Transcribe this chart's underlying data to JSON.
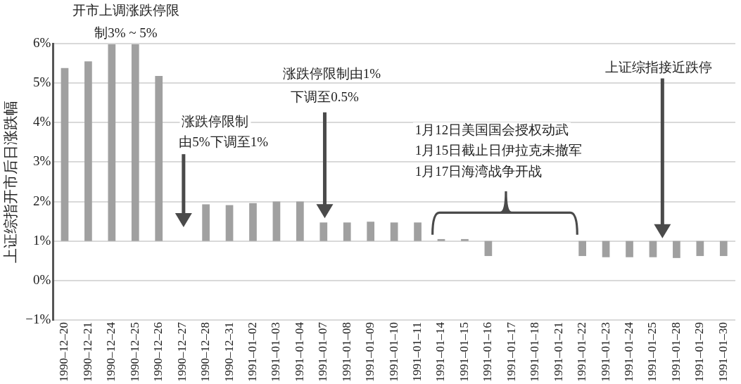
{
  "chart_data": {
    "type": "bar",
    "ylabel": "上证综指开市后日涨跌幅",
    "categories": [
      "1990–12–20",
      "1990–12–21",
      "1990–12–24",
      "1990–12–25",
      "1990–12–26",
      "1990–12–27",
      "1990–12–28",
      "1990–12–31",
      "1991–01–02",
      "1991–01–03",
      "1991–01–04",
      "1991–01–07",
      "1991–01–08",
      "1991–01–09",
      "1991–01–10",
      "1991–01–11",
      "1991–01–14",
      "1991–01–15",
      "1991–01–16",
      "1991–01–17",
      "1991–01–18",
      "1991–01–21",
      "1991–01–22",
      "1991–01–23",
      "1991–01–24",
      "1991–01–25",
      "1991–01–28",
      "1991–01–29",
      "1991–01–30"
    ],
    "values": [
      4.38,
      4.55,
      4.98,
      4.98,
      4.18,
      null,
      0.93,
      0.91,
      0.96,
      1.0,
      1.0,
      0.47,
      0.47,
      0.49,
      0.47,
      0.47,
      0.05,
      0.05,
      -0.38,
      null,
      null,
      null,
      -0.38,
      -0.41,
      -0.41,
      -0.41,
      -0.43,
      -0.38,
      -0.38
    ],
    "base": [
      1,
      1,
      1,
      1,
      1,
      null,
      1,
      1,
      1,
      1,
      1,
      1,
      1,
      1,
      1,
      1,
      1,
      1,
      1,
      null,
      null,
      null,
      1,
      1,
      1,
      1,
      1,
      1,
      1
    ],
    "color": "#a0a0a0",
    "ylim": [
      -1,
      6
    ],
    "yticks": [
      {
        "value": -1,
        "label": "−1%"
      },
      {
        "value": 0,
        "label": "0%"
      },
      {
        "value": 1,
        "label": "1%"
      },
      {
        "value": 2,
        "label": "2%"
      },
      {
        "value": 3,
        "label": "3%"
      },
      {
        "value": 4,
        "label": "4%"
      },
      {
        "value": 5,
        "label": "5%"
      },
      {
        "value": 6,
        "label": "6%"
      }
    ],
    "grid": "y",
    "annotations": [
      "开市上调涨跌停限",
      "制3% ~ 5%",
      "涨跌停限制",
      "由5%下调至1%",
      "涨跌停限制由1%",
      "下调至0.5%",
      "1月12日美国国会授权动武",
      "1月15日截止日伊拉克未撤军",
      "1月17日海湾战争开战",
      "上证综指接近跌停"
    ]
  }
}
